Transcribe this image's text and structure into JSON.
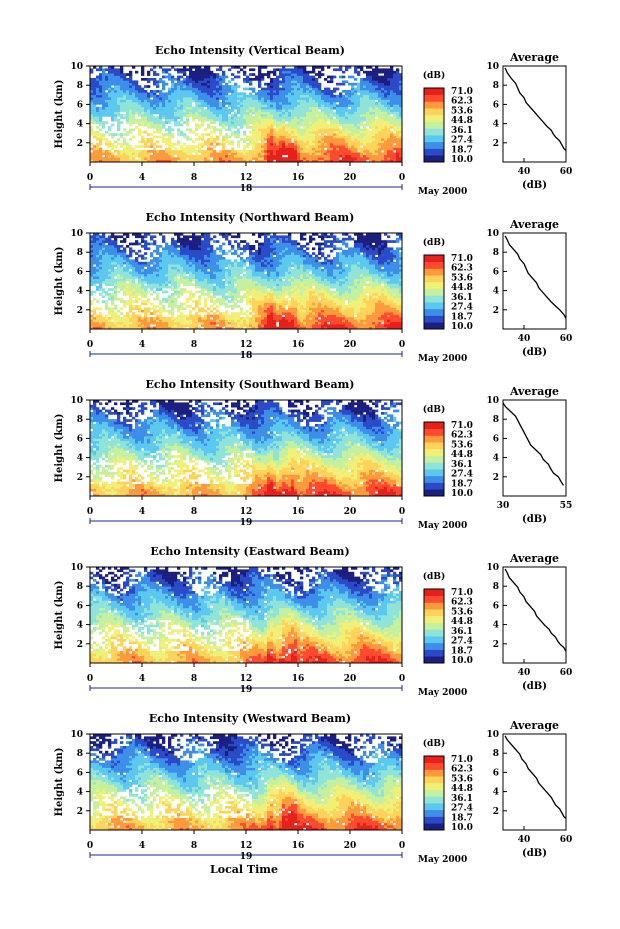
{
  "figure": {
    "xlabel": "Local Time",
    "xticks": [
      "0",
      "4",
      "8",
      "12",
      "16",
      "20",
      "0"
    ],
    "ylabel": "Height (km)",
    "yticks": [
      "2",
      "4",
      "6",
      "8",
      "10"
    ],
    "colorbar_unit": "(dB)",
    "colorbar_ticks": [
      "71.0",
      "62.3",
      "53.6",
      "44.8",
      "36.1",
      "27.4",
      "18.7",
      "10.0"
    ],
    "date_suffix": "May 2000",
    "avg_title": "Average",
    "avg_xlabel": "(dB)",
    "colors": [
      "#1a1f80",
      "#2a4ac8",
      "#3c8ee8",
      "#5cc8f0",
      "#8fe3d8",
      "#c5f0a0",
      "#f0f078",
      "#ffd25a",
      "#ff9a3c",
      "#ff4a30",
      "#e8201a"
    ]
  },
  "chart_data": [
    {
      "type": "heatmap",
      "title": "Echo Intensity (Vertical Beam)",
      "day_labels": [
        "18"
      ],
      "x_range": [
        0,
        24
      ],
      "y_range": [
        0,
        10
      ],
      "color_range": [
        10.0,
        71.0
      ],
      "average": {
        "type": "line",
        "title": "Average",
        "xlabel": "(dB)",
        "xticks": [
          "40",
          "60"
        ],
        "xlim": [
          30,
          60
        ],
        "ylim": [
          0,
          10
        ],
        "points": [
          [
            31,
            9.8
          ],
          [
            32,
            9.3
          ],
          [
            34,
            8.7
          ],
          [
            36,
            8.2
          ],
          [
            37,
            7.7
          ],
          [
            38,
            7.2
          ],
          [
            40,
            6.7
          ],
          [
            41,
            6.2
          ],
          [
            43,
            5.7
          ],
          [
            45,
            5.2
          ],
          [
            47,
            4.7
          ],
          [
            49,
            4.2
          ],
          [
            51,
            3.7
          ],
          [
            53,
            3.3
          ],
          [
            54,
            2.9
          ],
          [
            55,
            2.6
          ],
          [
            57,
            2.2
          ],
          [
            58,
            1.8
          ],
          [
            59,
            1.4
          ],
          [
            60,
            1.2
          ]
        ]
      }
    },
    {
      "type": "heatmap",
      "title": "Echo Intensity (Northward Beam)",
      "day_labels": [
        "18"
      ],
      "x_range": [
        0,
        24
      ],
      "y_range": [
        0,
        10
      ],
      "color_range": [
        10.0,
        71.0
      ],
      "average": {
        "type": "line",
        "title": "Average",
        "xlabel": "(dB)",
        "xticks": [
          "40",
          "60"
        ],
        "xlim": [
          30,
          60
        ],
        "ylim": [
          0,
          10
        ],
        "points": [
          [
            31,
            9.7
          ],
          [
            32,
            9.3
          ],
          [
            33,
            8.8
          ],
          [
            35,
            8.3
          ],
          [
            37,
            7.8
          ],
          [
            38,
            7.3
          ],
          [
            40,
            6.8
          ],
          [
            41,
            6.3
          ],
          [
            42,
            5.8
          ],
          [
            44,
            5.3
          ],
          [
            46,
            4.8
          ],
          [
            47,
            4.3
          ],
          [
            49,
            3.8
          ],
          [
            51,
            3.3
          ],
          [
            53,
            2.8
          ],
          [
            55,
            2.4
          ],
          [
            57,
            2.0
          ],
          [
            59,
            1.5
          ],
          [
            60,
            1.1
          ]
        ]
      }
    },
    {
      "type": "heatmap",
      "title": "Echo Intensity (Southward Beam)",
      "day_labels": [
        "19"
      ],
      "x_range": [
        0,
        24
      ],
      "y_range": [
        0,
        10
      ],
      "color_range": [
        10.0,
        71.0
      ],
      "average": {
        "type": "line",
        "title": "Average",
        "xlabel": "(dB)",
        "xticks": [
          "30",
          "55"
        ],
        "xlim": [
          30,
          55
        ],
        "ylim": [
          0,
          10
        ],
        "points": [
          [
            30,
            9.7
          ],
          [
            31,
            9.3
          ],
          [
            33,
            8.8
          ],
          [
            35,
            8.3
          ],
          [
            36,
            7.8
          ],
          [
            37,
            7.3
          ],
          [
            38,
            6.8
          ],
          [
            39,
            6.3
          ],
          [
            40,
            5.8
          ],
          [
            41,
            5.3
          ],
          [
            43,
            4.8
          ],
          [
            45,
            4.3
          ],
          [
            46,
            3.8
          ],
          [
            48,
            3.3
          ],
          [
            49,
            2.8
          ],
          [
            50,
            2.4
          ],
          [
            52,
            2.0
          ],
          [
            53,
            1.5
          ],
          [
            54,
            1.1
          ]
        ]
      }
    },
    {
      "type": "heatmap",
      "title": "Echo Intensity (Eastward Beam)",
      "day_labels": [
        "19"
      ],
      "x_range": [
        0,
        24
      ],
      "y_range": [
        0,
        10
      ],
      "color_range": [
        10.0,
        71.0
      ],
      "average": {
        "type": "line",
        "title": "Average",
        "xlabel": "(dB)",
        "xticks": [
          "40",
          "60"
        ],
        "xlim": [
          30,
          60
        ],
        "ylim": [
          0,
          10
        ],
        "points": [
          [
            31,
            9.8
          ],
          [
            32,
            9.4
          ],
          [
            33,
            8.9
          ],
          [
            35,
            8.4
          ],
          [
            37,
            7.9
          ],
          [
            38,
            7.4
          ],
          [
            40,
            6.9
          ],
          [
            41,
            6.4
          ],
          [
            43,
            5.9
          ],
          [
            45,
            5.4
          ],
          [
            46,
            4.9
          ],
          [
            48,
            4.4
          ],
          [
            50,
            3.9
          ],
          [
            52,
            3.5
          ],
          [
            53,
            3.1
          ],
          [
            55,
            2.7
          ],
          [
            56,
            2.3
          ],
          [
            57,
            2.0
          ],
          [
            59,
            1.6
          ],
          [
            60,
            1.2
          ]
        ]
      }
    },
    {
      "type": "heatmap",
      "title": "Echo Intensity (Westward Beam)",
      "day_labels": [
        "19"
      ],
      "x_range": [
        0,
        24
      ],
      "y_range": [
        0,
        10
      ],
      "color_range": [
        10.0,
        71.0
      ],
      "average": {
        "type": "line",
        "title": "Average",
        "xlabel": "(dB)",
        "xticks": [
          "40",
          "60"
        ],
        "xlim": [
          30,
          60
        ],
        "ylim": [
          0,
          10
        ],
        "points": [
          [
            31,
            9.8
          ],
          [
            32,
            9.4
          ],
          [
            34,
            8.9
          ],
          [
            36,
            8.4
          ],
          [
            38,
            7.9
          ],
          [
            39,
            7.4
          ],
          [
            41,
            6.9
          ],
          [
            42,
            6.4
          ],
          [
            44,
            5.9
          ],
          [
            46,
            5.4
          ],
          [
            47,
            4.9
          ],
          [
            49,
            4.4
          ],
          [
            51,
            3.9
          ],
          [
            53,
            3.4
          ],
          [
            54,
            3.0
          ],
          [
            55,
            2.6
          ],
          [
            57,
            2.2
          ],
          [
            58,
            1.8
          ],
          [
            59,
            1.4
          ],
          [
            60,
            1.2
          ]
        ]
      }
    }
  ]
}
